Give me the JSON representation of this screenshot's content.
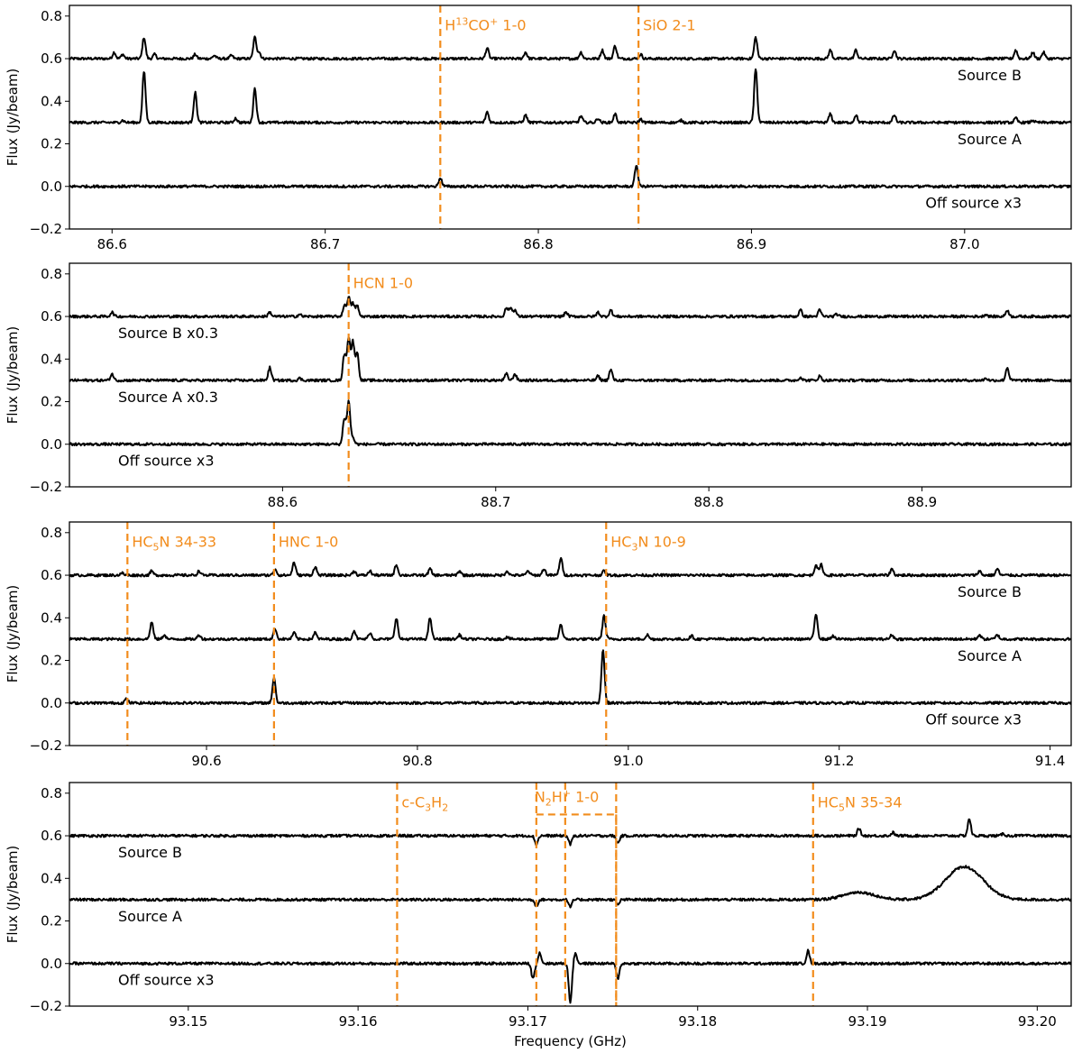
{
  "chart_data": [
    {
      "type": "line",
      "panel": 1,
      "ylabel": "Flux (Jy/beam)",
      "xlabel": "",
      "xlim": [
        86.58,
        87.05
      ],
      "ylim": [
        -0.2,
        0.85
      ],
      "xticks": [
        86.6,
        86.7,
        86.8,
        86.9,
        87.0
      ],
      "xtick_labels": [
        "86.6",
        "86.7",
        "86.8",
        "86.9",
        "87.0"
      ],
      "yticks": [
        -0.2,
        0.0,
        0.2,
        0.4,
        0.6,
        0.8
      ],
      "ytick_labels": [
        "−0.2",
        "0.0",
        "0.2",
        "0.4",
        "0.6",
        "0.8"
      ],
      "series": [
        {
          "name": "Source B",
          "baseline": 0.6,
          "label_pos": "right",
          "peaks": [
            [
              86.601,
              0.03
            ],
            [
              86.605,
              0.02
            ],
            [
              86.615,
              0.1
            ],
            [
              86.62,
              0.02
            ],
            [
              86.639,
              0.02
            ],
            [
              86.648,
              0.015
            ],
            [
              86.656,
              0.015
            ],
            [
              86.667,
              0.1
            ],
            [
              86.669,
              0.03
            ],
            [
              86.776,
              0.05
            ],
            [
              86.794,
              0.03
            ],
            [
              86.82,
              0.03
            ],
            [
              86.83,
              0.04
            ],
            [
              86.836,
              0.06
            ],
            [
              86.848,
              0.02
            ],
            [
              86.902,
              0.1
            ],
            [
              86.937,
              0.04
            ],
            [
              86.949,
              0.04
            ],
            [
              86.967,
              0.04
            ],
            [
              87.024,
              0.04
            ],
            [
              87.032,
              0.03
            ],
            [
              87.037,
              0.03
            ]
          ]
        },
        {
          "name": "Source A",
          "baseline": 0.3,
          "label_pos": "right",
          "peaks": [
            [
              86.605,
              0.01
            ],
            [
              86.615,
              0.24
            ],
            [
              86.639,
              0.14
            ],
            [
              86.658,
              0.02
            ],
            [
              86.667,
              0.16
            ],
            [
              86.776,
              0.05
            ],
            [
              86.794,
              0.035
            ],
            [
              86.82,
              0.03
            ],
            [
              86.828,
              0.02
            ],
            [
              86.836,
              0.04
            ],
            [
              86.848,
              0.015
            ],
            [
              86.867,
              0.01
            ],
            [
              86.902,
              0.25
            ],
            [
              86.937,
              0.04
            ],
            [
              86.949,
              0.035
            ],
            [
              86.967,
              0.035
            ],
            [
              87.024,
              0.02
            ],
            [
              87.032,
              0.01
            ]
          ]
        },
        {
          "name": "Off source x3",
          "baseline": 0.0,
          "label_pos": "right",
          "peaks": [
            [
              86.754,
              0.04
            ],
            [
              86.846,
              0.1
            ]
          ]
        }
      ],
      "lines": [
        {
          "label": "H13CO+ 1-0",
          "x": 86.754
        },
        {
          "label": "SiO 2-1",
          "x": 86.847
        }
      ]
    },
    {
      "type": "line",
      "panel": 2,
      "ylabel": "Flux (Jy/beam)",
      "xlabel": "",
      "xlim": [
        88.5,
        88.97
      ],
      "ylim": [
        -0.2,
        0.85
      ],
      "xticks": [
        88.6,
        88.7,
        88.8,
        88.9
      ],
      "xtick_labels": [
        "88.6",
        "88.7",
        "88.8",
        "88.9"
      ],
      "yticks": [
        -0.2,
        0.0,
        0.2,
        0.4,
        0.6,
        0.8
      ],
      "ytick_labels": [
        "−0.2",
        "0.0",
        "0.2",
        "0.4",
        "0.6",
        "0.8"
      ],
      "series": [
        {
          "name": "Source B x0.3",
          "baseline": 0.6,
          "label_pos": "left",
          "peaks": [
            [
              88.52,
              0.02
            ],
            [
              88.594,
              0.02
            ],
            [
              88.608,
              0.01
            ],
            [
              88.629,
              0.05
            ],
            [
              88.631,
              0.09
            ],
            [
              88.633,
              0.06
            ],
            [
              88.635,
              0.05
            ],
            [
              88.705,
              0.04
            ],
            [
              88.707,
              0.04
            ],
            [
              88.709,
              0.03
            ],
            [
              88.733,
              0.02
            ],
            [
              88.748,
              0.02
            ],
            [
              88.754,
              0.03
            ],
            [
              88.843,
              0.03
            ],
            [
              88.852,
              0.03
            ],
            [
              88.86,
              0.01
            ],
            [
              88.93,
              0.01
            ],
            [
              88.94,
              0.03
            ]
          ]
        },
        {
          "name": "Source A x0.3",
          "baseline": 0.3,
          "label_pos": "left",
          "peaks": [
            [
              88.52,
              0.03
            ],
            [
              88.594,
              0.06
            ],
            [
              88.608,
              0.01
            ],
            [
              88.629,
              0.12
            ],
            [
              88.631,
              0.2
            ],
            [
              88.633,
              0.18
            ],
            [
              88.635,
              0.13
            ],
            [
              88.705,
              0.03
            ],
            [
              88.709,
              0.03
            ],
            [
              88.748,
              0.02
            ],
            [
              88.754,
              0.05
            ],
            [
              88.843,
              0.015
            ],
            [
              88.852,
              0.02
            ],
            [
              88.93,
              0.01
            ],
            [
              88.94,
              0.06
            ]
          ]
        },
        {
          "name": "Off source x3",
          "baseline": 0.0,
          "label_pos": "left",
          "peaks": [
            [
              88.629,
              0.12
            ],
            [
              88.631,
              0.2
            ],
            [
              88.633,
              0.03
            ]
          ]
        }
      ],
      "lines": [
        {
          "label": "HCN 1-0",
          "x": 88.631
        }
      ]
    },
    {
      "type": "line",
      "panel": 3,
      "ylabel": "Flux (Jy/beam)",
      "xlabel": "",
      "xlim": [
        90.47,
        91.42
      ],
      "ylim": [
        -0.2,
        0.85
      ],
      "xticks": [
        90.6,
        90.8,
        91.0,
        91.2,
        91.4
      ],
      "xtick_labels": [
        "90.6",
        "90.8",
        "91.0",
        "91.2",
        "91.4"
      ],
      "yticks": [
        -0.2,
        0.0,
        0.2,
        0.4,
        0.6,
        0.8
      ],
      "ytick_labels": [
        "−0.2",
        "0.0",
        "0.2",
        "0.4",
        "0.6",
        "0.8"
      ],
      "series": [
        {
          "name": "Source B",
          "baseline": 0.6,
          "label_pos": "right",
          "peaks": [
            [
              90.52,
              0.01
            ],
            [
              90.548,
              0.02
            ],
            [
              90.593,
              0.02
            ],
            [
              90.665,
              0.03
            ],
            [
              90.683,
              0.06
            ],
            [
              90.703,
              0.04
            ],
            [
              90.74,
              0.02
            ],
            [
              90.755,
              0.02
            ],
            [
              90.78,
              0.05
            ],
            [
              90.812,
              0.03
            ],
            [
              90.84,
              0.02
            ],
            [
              90.885,
              0.02
            ],
            [
              90.905,
              0.02
            ],
            [
              90.92,
              0.03
            ],
            [
              90.936,
              0.08
            ],
            [
              90.977,
              0.02
            ],
            [
              91.178,
              0.05
            ],
            [
              91.183,
              0.05
            ],
            [
              91.25,
              0.03
            ],
            [
              91.333,
              0.02
            ],
            [
              91.35,
              0.03
            ]
          ]
        },
        {
          "name": "Source A",
          "baseline": 0.3,
          "label_pos": "right",
          "peaks": [
            [
              90.548,
              0.08
            ],
            [
              90.56,
              0.02
            ],
            [
              90.593,
              0.02
            ],
            [
              90.665,
              0.05
            ],
            [
              90.683,
              0.03
            ],
            [
              90.703,
              0.03
            ],
            [
              90.74,
              0.04
            ],
            [
              90.755,
              0.03
            ],
            [
              90.78,
              0.1
            ],
            [
              90.812,
              0.1
            ],
            [
              90.84,
              0.02
            ],
            [
              90.885,
              0.01
            ],
            [
              90.936,
              0.07
            ],
            [
              90.977,
              0.11
            ],
            [
              91.018,
              0.02
            ],
            [
              91.06,
              0.015
            ],
            [
              91.178,
              0.12
            ],
            [
              91.194,
              0.015
            ],
            [
              91.25,
              0.02
            ],
            [
              91.333,
              0.02
            ],
            [
              91.35,
              0.02
            ]
          ]
        },
        {
          "name": "Off source x3",
          "baseline": 0.0,
          "label_pos": "right",
          "peaks": [
            [
              90.524,
              0.02
            ],
            [
              90.664,
              0.12
            ],
            [
              90.976,
              0.25
            ]
          ]
        }
      ],
      "lines": [
        {
          "label": "HC5N 34-33",
          "x": 90.525
        },
        {
          "label": "HNC 1-0",
          "x": 90.664
        },
        {
          "label": "HC3N 10-9",
          "x": 90.979
        }
      ]
    },
    {
      "type": "line",
      "panel": 4,
      "ylabel": "Flux (Jy/beam)",
      "xlabel": "Frequency (GHz)",
      "xlim": [
        93.143,
        93.202
      ],
      "ylim": [
        -0.2,
        0.85
      ],
      "xticks": [
        93.15,
        93.16,
        93.17,
        93.18,
        93.19,
        93.2
      ],
      "xtick_labels": [
        "93.15",
        "93.16",
        "93.17",
        "93.18",
        "93.19",
        "93.20"
      ],
      "yticks": [
        -0.2,
        0.0,
        0.2,
        0.4,
        0.6,
        0.8
      ],
      "ytick_labels": [
        "−0.2",
        "0.0",
        "0.2",
        "0.4",
        "0.6",
        "0.8"
      ],
      "series": [
        {
          "name": "Source B",
          "baseline": 0.6,
          "label_pos": "left",
          "peaks": [
            [
              93.1705,
              -0.04
            ],
            [
              93.1725,
              -0.04
            ],
            [
              93.1753,
              -0.035
            ],
            [
              93.1895,
              0.035
            ],
            [
              93.1915,
              0.015
            ],
            [
              93.196,
              0.08
            ],
            [
              93.198,
              0.01
            ]
          ]
        },
        {
          "name": "Source A",
          "baseline": 0.3,
          "label_pos": "left",
          "peaks": [
            [
              93.1705,
              -0.03
            ],
            [
              93.1725,
              -0.035
            ],
            [
              93.1753,
              -0.025
            ]
          ],
          "broad": [
            [
              93.1895,
              0.035,
              0.0009
            ],
            [
              93.1957,
              0.155,
              0.0011
            ]
          ]
        },
        {
          "name": "Off source x3",
          "baseline": 0.0,
          "label_pos": "left",
          "peaks": [
            [
              93.1703,
              -0.07
            ],
            [
              93.1707,
              0.05
            ],
            [
              93.1725,
              -0.18
            ],
            [
              93.1728,
              0.05
            ],
            [
              93.1753,
              -0.07
            ],
            [
              93.1865,
              0.06
            ]
          ]
        }
      ],
      "lines": [
        {
          "label": "c-C3H2",
          "x": 93.1623
        },
        {
          "label": "N2H+ 1-0",
          "x": 93.1705,
          "bracket": [
            93.1705,
            93.1752
          ]
        },
        {
          "label": "",
          "x": 93.1722
        },
        {
          "label": "",
          "x": 93.1752
        },
        {
          "label": "HC5N 35-34",
          "x": 93.1868
        }
      ]
    }
  ]
}
